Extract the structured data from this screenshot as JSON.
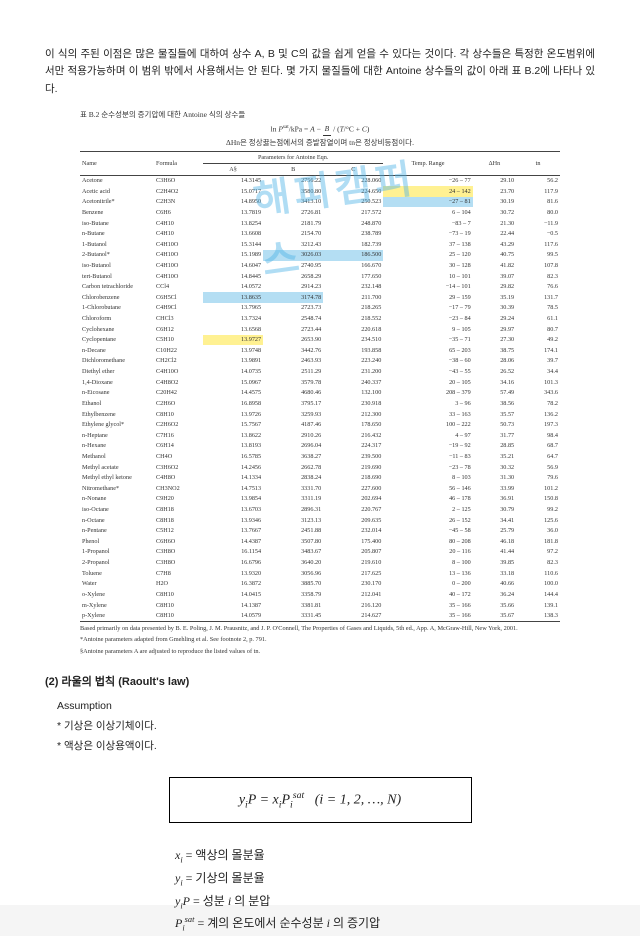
{
  "intro": "이 식의 주된 이점은 많은 물질들에 대하여 상수 A, B 및 C의 값을 쉽게 얻을 수 있다는 것이다. 각 상수들은 특정한 온도범위에서만 적용가능하며 이 범위 밖에서 사용해서는 안 된다. 몇 가지 물질들에 대한 Antoine 상수들의 값이 아래 표 B.2에 나타나 있다.",
  "table": {
    "caption": "표 B.2  순수성분의 증기압에 대한 Antoine 식의 상수들",
    "equation": "ln P sat/kPa = A − B / (T/°C + C)",
    "topnote": "ΔHn은 정상끓는점에서의 증발잠열이며 tn은 정상비등점이다.",
    "group_headers": [
      "Name",
      "Formula",
      "Parameters for Antoine Eqn.",
      "Temp. Range",
      "ΔHn",
      "tn"
    ],
    "sub_headers": [
      "",
      "",
      "A§",
      "B",
      "C",
      "°C",
      "kJ/mol",
      "°C"
    ],
    "rows": [
      [
        "Acetone",
        "C3H6O",
        "14.3145",
        "2756.22",
        "228.060",
        "−26 – 77",
        "29.10",
        "56.2"
      ],
      [
        "Acetic acid",
        "C2H4O2",
        "15.0717",
        "3580.80",
        "224.650",
        "24 – 142",
        "23.70",
        "117.9"
      ],
      [
        "Acetonitrile*",
        "C2H3N",
        "14.8950",
        "3413.10",
        "250.523",
        "−27 – 81",
        "30.19",
        "81.6"
      ],
      [
        "Benzene",
        "C6H6",
        "13.7819",
        "2726.81",
        "217.572",
        "6 – 104",
        "30.72",
        "80.0"
      ],
      [
        "iso-Butane",
        "C4H10",
        "13.8254",
        "2181.79",
        "248.870",
        "−83 – 7",
        "21.30",
        "−11.9"
      ],
      [
        "n-Butane",
        "C4H10",
        "13.6608",
        "2154.70",
        "238.789",
        "−73 – 19",
        "22.44",
        "−0.5"
      ],
      [
        "1-Butanol",
        "C4H10O",
        "15.3144",
        "3212.43",
        "182.739",
        "37 – 138",
        "43.29",
        "117.6"
      ],
      [
        "2-Butanol*",
        "C4H10O",
        "15.1989",
        "3026.03",
        "186.500",
        "25 – 120",
        "40.75",
        "99.5"
      ],
      [
        "iso-Butanol",
        "C4H10O",
        "14.6047",
        "2740.95",
        "166.670",
        "30 – 128",
        "41.82",
        "107.8"
      ],
      [
        "tert-Butanol",
        "C4H10O",
        "14.8445",
        "2658.29",
        "177.650",
        "10 – 101",
        "39.07",
        "82.3"
      ],
      [
        "Carbon tetrachloride",
        "CCl4",
        "14.0572",
        "2914.23",
        "232.148",
        "−14 – 101",
        "29.82",
        "76.6"
      ],
      [
        "Chlorobenzene",
        "C6H5Cl",
        "13.8635",
        "3174.78",
        "211.700",
        "29 – 159",
        "35.19",
        "131.7"
      ],
      [
        "1-Chlorobutane",
        "C4H9Cl",
        "13.7965",
        "2723.73",
        "218.265",
        "−17 – 79",
        "30.39",
        "78.5"
      ],
      [
        "Chloroform",
        "CHCl3",
        "13.7324",
        "2548.74",
        "218.552",
        "−23 – 84",
        "29.24",
        "61.1"
      ],
      [
        "Cyclohexane",
        "C6H12",
        "13.6568",
        "2723.44",
        "220.618",
        "9 – 105",
        "29.97",
        "80.7"
      ],
      [
        "Cyclopentane",
        "C5H10",
        "13.9727",
        "2653.90",
        "234.510",
        "−35 – 71",
        "27.30",
        "49.2"
      ],
      [
        "n-Decane",
        "C10H22",
        "13.9748",
        "3442.76",
        "193.858",
        "65 – 203",
        "38.75",
        "174.1"
      ],
      [
        "Dichloromethane",
        "CH2Cl2",
        "13.9891",
        "2463.93",
        "223.240",
        "−38 – 60",
        "28.06",
        "39.7"
      ],
      [
        "Diethyl ether",
        "C4H10O",
        "14.0735",
        "2511.29",
        "231.200",
        "−43 – 55",
        "26.52",
        "34.4"
      ],
      [
        "1,4-Dioxane",
        "C4H8O2",
        "15.0967",
        "3579.78",
        "240.337",
        "20 – 105",
        "34.16",
        "101.3"
      ],
      [
        "n-Eicosane",
        "C20H42",
        "14.4575",
        "4680.46",
        "132.100",
        "208 – 379",
        "57.49",
        "343.6"
      ],
      [
        "Ethanol",
        "C2H6O",
        "16.8958",
        "3795.17",
        "230.918",
        "3 – 96",
        "38.56",
        "78.2"
      ],
      [
        "Ethylbenzene",
        "C8H10",
        "13.9726",
        "3259.93",
        "212.300",
        "33 – 163",
        "35.57",
        "136.2"
      ],
      [
        "Ethylene glycol*",
        "C2H6O2",
        "15.7567",
        "4187.46",
        "178.650",
        "100 – 222",
        "50.73",
        "197.3"
      ],
      [
        "n-Heptane",
        "C7H16",
        "13.8622",
        "2910.26",
        "216.432",
        "4 – 97",
        "31.77",
        "98.4"
      ],
      [
        "n-Hexane",
        "C6H14",
        "13.8193",
        "2696.04",
        "224.317",
        "−19 – 92",
        "28.85",
        "68.7"
      ],
      [
        "Methanol",
        "CH4O",
        "16.5785",
        "3638.27",
        "239.500",
        "−11 – 83",
        "35.21",
        "64.7"
      ],
      [
        "Methyl acetate",
        "C3H6O2",
        "14.2456",
        "2662.78",
        "219.690",
        "−23 – 78",
        "30.32",
        "56.9"
      ],
      [
        "Methyl ethyl ketone",
        "C4H8O",
        "14.1334",
        "2838.24",
        "218.690",
        "8 – 103",
        "31.30",
        "79.6"
      ],
      [
        "Nitromethane*",
        "CH3NO2",
        "14.7513",
        "3331.70",
        "227.600",
        "56 – 146",
        "33.99",
        "101.2"
      ],
      [
        "n-Nonane",
        "C9H20",
        "13.9854",
        "3311.19",
        "202.694",
        "46 – 178",
        "36.91",
        "150.8"
      ],
      [
        "iso-Octane",
        "C8H18",
        "13.6703",
        "2896.31",
        "220.767",
        "2 – 125",
        "30.79",
        "99.2"
      ],
      [
        "n-Octane",
        "C8H18",
        "13.9346",
        "3123.13",
        "209.635",
        "26 – 152",
        "34.41",
        "125.6"
      ],
      [
        "n-Pentane",
        "C5H12",
        "13.7667",
        "2451.88",
        "232.014",
        "−45 – 58",
        "25.79",
        "36.0"
      ],
      [
        "Phenol",
        "C6H6O",
        "14.4387",
        "3507.80",
        "175.400",
        "80 – 208",
        "46.18",
        "181.8"
      ],
      [
        "1-Propanol",
        "C3H8O",
        "16.1154",
        "3483.67",
        "205.807",
        "20 – 116",
        "41.44",
        "97.2"
      ],
      [
        "2-Propanol",
        "C3H8O",
        "16.6796",
        "3640.20",
        "219.610",
        "8 – 100",
        "39.85",
        "82.3"
      ],
      [
        "Toluene",
        "C7H8",
        "13.9320",
        "3056.96",
        "217.625",
        "13 – 136",
        "33.18",
        "110.6"
      ],
      [
        "Water",
        "H2O",
        "16.3872",
        "3885.70",
        "230.170",
        "0 – 200",
        "40.66",
        "100.0"
      ],
      [
        "o-Xylene",
        "C8H10",
        "14.0415",
        "3358.79",
        "212.041",
        "40 – 172",
        "36.24",
        "144.4"
      ],
      [
        "m-Xylene",
        "C8H10",
        "14.1387",
        "3381.81",
        "216.120",
        "35 – 166",
        "35.66",
        "139.1"
      ],
      [
        "p-Xylene",
        "C8H10",
        "14.0579",
        "3331.45",
        "214.627",
        "35 – 166",
        "35.67",
        "138.3"
      ]
    ],
    "footnote1": "Based primarily on data presented by B. E. Poling, J. M. Prausnitz, and J. P. O'Connell, The Properties of Gases and Liquids, 5th ed., App. A, McGraw-Hill, New York, 2001.",
    "footnote2": "*Antoine parameters adapted from Gmehling et al. See footnote 2, p. 791.",
    "footnote3": "§Antoine parameters A are adjusted to reproduce the listed values of tn."
  },
  "section2": {
    "title": "(2) 라울의 법칙 (Raoult's law)",
    "assumption_label": "Assumption",
    "a1": "* 기상은 이상기체이다.",
    "a2": "* 액상은 이상용액이다."
  },
  "equation_box": "yiP = xiPi sat   (i = 1, 2, …, N)",
  "legend": {
    "x": "xi = 액상의 몰분율",
    "y": "yi = 기상의 몰분율",
    "yp": "yiP = 성분 i 의 분압",
    "psat": "Pi sat = 계의 온도에서 순수성분 i 의 증기압"
  },
  "styling": {
    "page_bg": "#ffffff",
    "text_color": "#222222",
    "table_font": "Times New Roman",
    "watermark_color": "rgba(80,180,230,0.45)",
    "highlight_yellow": "rgba(255,235,100,0.7)",
    "highlight_blue": "rgba(130,200,235,0.6)"
  }
}
